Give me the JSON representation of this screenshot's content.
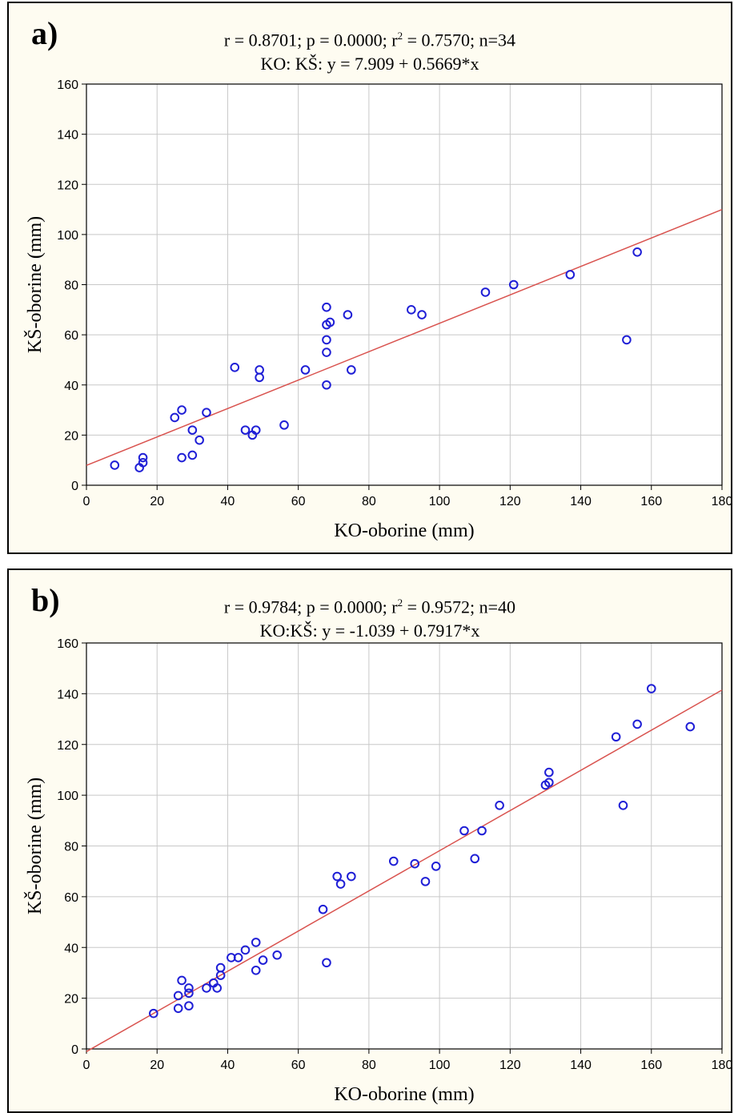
{
  "chart_data": [
    {
      "type": "scatter",
      "panel": "a)",
      "stats": {
        "r": "r = 0.8701; p = 0.0000; r",
        "r2_exp": "2",
        "r2_rest": " = 0.7570; n=34",
        "equation": "KO: KŠ: y = 7.909 + 0.5669*x"
      },
      "xlabel": "KO-oborine (mm)",
      "ylabel": "KŠ-oborine (mm)",
      "xlim": [
        0,
        180
      ],
      "ylim": [
        0,
        160
      ],
      "xticks": [
        "0",
        "20",
        "40",
        "60",
        "80",
        "100",
        "120",
        "140",
        "160",
        "180"
      ],
      "yticks": [
        "0",
        "20",
        "40",
        "60",
        "80",
        "100",
        "120",
        "140",
        "160"
      ],
      "grid": true,
      "fit": {
        "intercept": 7.909,
        "slope": 0.5669
      },
      "colors": {
        "points": "#1f1fd6",
        "fit": "#d9534f",
        "grid": "#c8c8c8"
      },
      "points": [
        [
          8,
          8
        ],
        [
          15,
          7
        ],
        [
          16,
          9
        ],
        [
          16,
          11
        ],
        [
          25,
          27
        ],
        [
          27,
          30
        ],
        [
          27,
          11
        ],
        [
          30,
          12
        ],
        [
          30,
          22
        ],
        [
          32,
          18
        ],
        [
          34,
          29
        ],
        [
          42,
          47
        ],
        [
          45,
          22
        ],
        [
          47,
          20
        ],
        [
          48,
          22
        ],
        [
          49,
          43
        ],
        [
          49,
          46
        ],
        [
          56,
          24
        ],
        [
          62,
          46
        ],
        [
          68,
          71
        ],
        [
          68,
          64
        ],
        [
          69,
          65
        ],
        [
          68,
          58
        ],
        [
          68,
          53
        ],
        [
          68,
          40
        ],
        [
          74,
          68
        ],
        [
          75,
          46
        ],
        [
          92,
          70
        ],
        [
          95,
          68
        ],
        [
          113,
          77
        ],
        [
          121,
          80
        ],
        [
          137,
          84
        ],
        [
          153,
          58
        ],
        [
          156,
          93
        ]
      ]
    },
    {
      "type": "scatter",
      "panel": "b)",
      "stats": {
        "r": "r = 0.9784; p = 0.0000; r",
        "r2_exp": "2",
        "r2_rest": " = 0.9572; n=40",
        "equation": "KO:KŠ: y = -1.039 + 0.7917*x"
      },
      "xlabel": "KO-oborine (mm)",
      "ylabel": "KŠ-oborine (mm)",
      "xlim": [
        0,
        180
      ],
      "ylim": [
        0,
        160
      ],
      "xticks": [
        "0",
        "20",
        "40",
        "60",
        "80",
        "100",
        "120",
        "140",
        "160",
        "180"
      ],
      "yticks": [
        "0",
        "20",
        "40",
        "60",
        "80",
        "100",
        "120",
        "140",
        "160"
      ],
      "grid": true,
      "fit": {
        "intercept": -1.039,
        "slope": 0.7917
      },
      "colors": {
        "points": "#1f1fd6",
        "fit": "#d9534f",
        "grid": "#c8c8c8"
      },
      "points": [
        [
          19,
          14
        ],
        [
          26,
          16
        ],
        [
          26,
          21
        ],
        [
          27,
          27
        ],
        [
          29,
          17
        ],
        [
          29,
          22
        ],
        [
          29,
          24
        ],
        [
          34,
          24
        ],
        [
          36,
          26
        ],
        [
          37,
          24
        ],
        [
          38,
          29
        ],
        [
          38,
          32
        ],
        [
          41,
          36
        ],
        [
          43,
          36
        ],
        [
          45,
          39
        ],
        [
          48,
          31
        ],
        [
          48,
          42
        ],
        [
          50,
          35
        ],
        [
          54,
          37
        ],
        [
          67,
          55
        ],
        [
          68,
          34
        ],
        [
          71,
          68
        ],
        [
          72,
          65
        ],
        [
          75,
          68
        ],
        [
          87,
          74
        ],
        [
          93,
          73
        ],
        [
          96,
          66
        ],
        [
          99,
          72
        ],
        [
          107,
          86
        ],
        [
          110,
          75
        ],
        [
          112,
          86
        ],
        [
          117,
          96
        ],
        [
          130,
          104
        ],
        [
          131,
          105
        ],
        [
          131,
          109
        ],
        [
          150,
          123
        ],
        [
          152,
          96
        ],
        [
          156,
          128
        ],
        [
          160,
          142
        ],
        [
          171,
          127
        ]
      ]
    }
  ]
}
